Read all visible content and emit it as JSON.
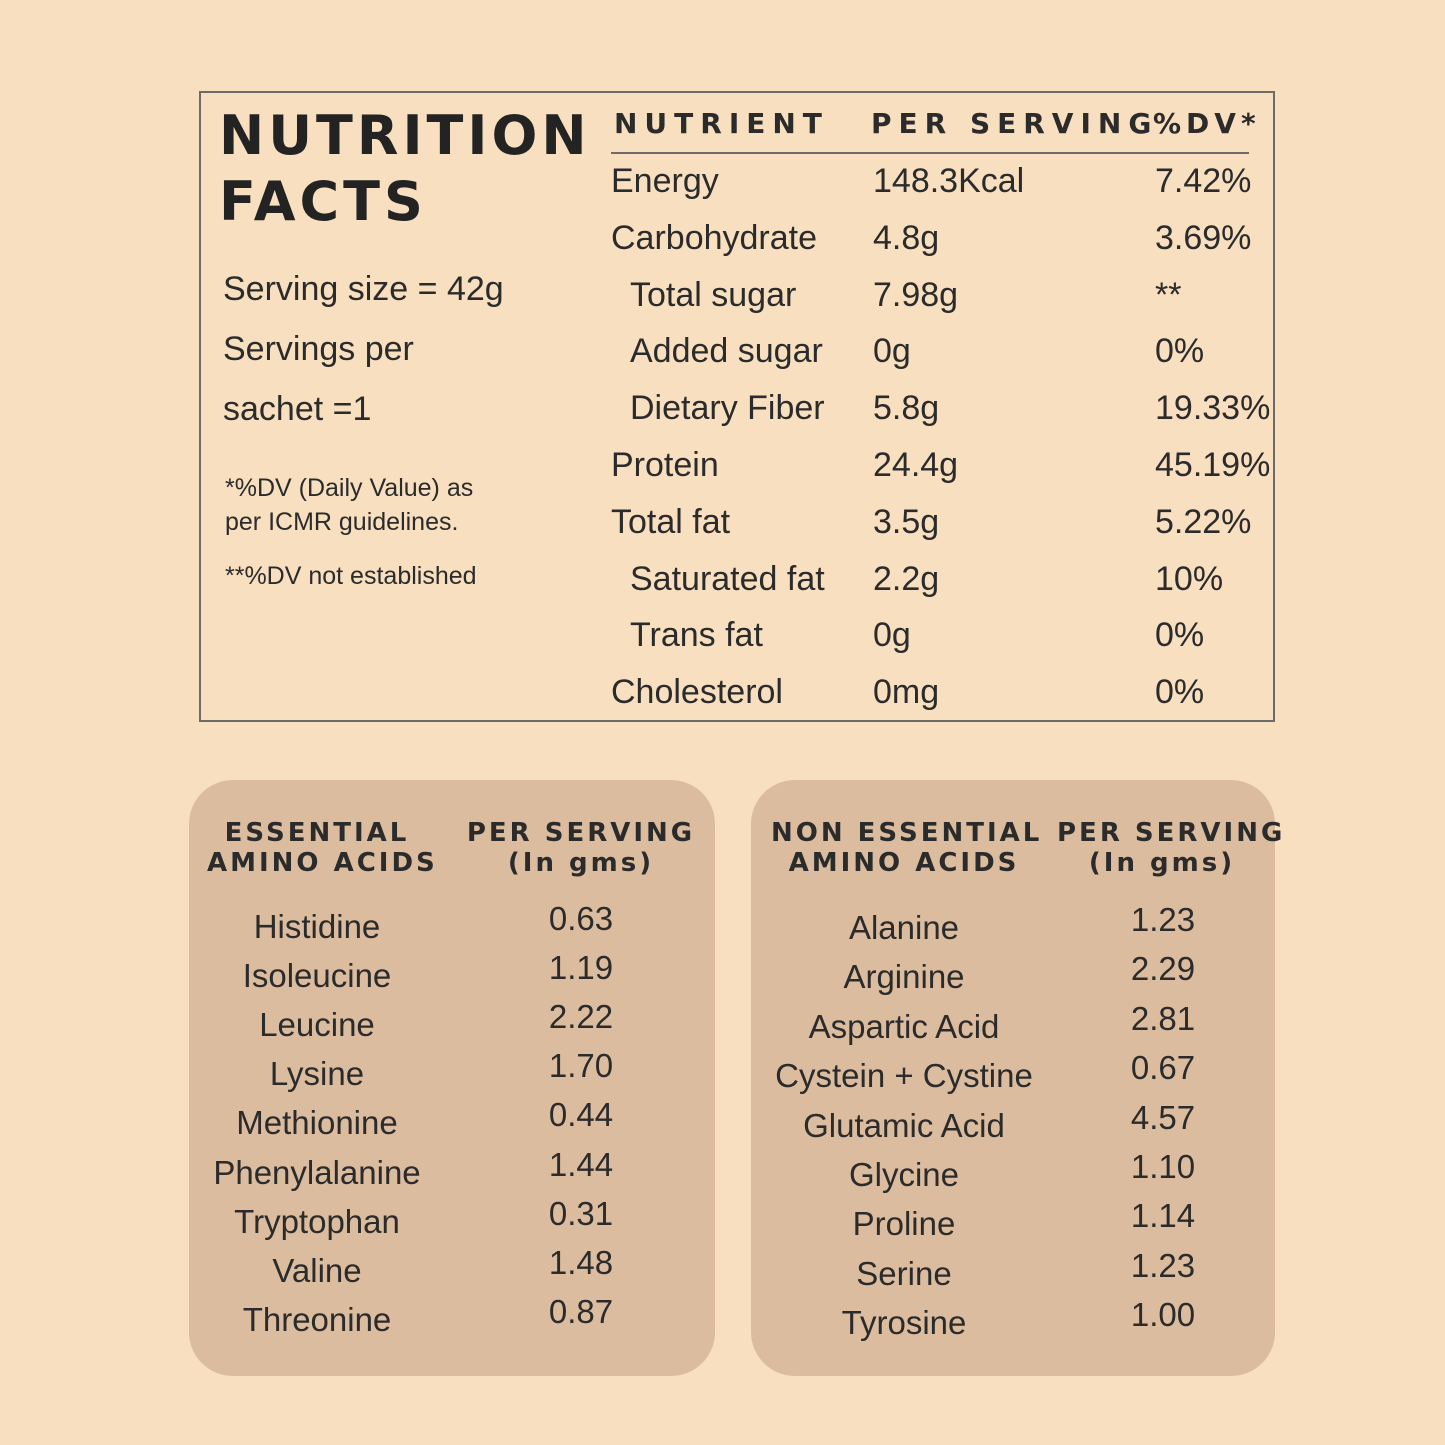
{
  "facts": {
    "title_line1": "NUTRITION",
    "title_line2": "FACTS",
    "serving_size": "Serving size = 42g",
    "servings_line1": "Servings per",
    "servings_line2": "sachet =1",
    "note_dv_line1": "*%DV (Daily Value) as",
    "note_dv_line2": "per ICMR guidelines.",
    "note_not_established": "**%DV not established"
  },
  "nutrient_table": {
    "headers": {
      "nutrient": "NUTRIENT",
      "per_serving": "PER SERVING",
      "dv": "%DV*"
    },
    "rows": [
      {
        "name": "Energy",
        "value": "148.3Kcal",
        "dv": "7.42%",
        "indent": false
      },
      {
        "name": "Carbohydrate",
        "value": "4.8g",
        "dv": "3.69%",
        "indent": false
      },
      {
        "name": "Total sugar",
        "value": "7.98g",
        "dv": "**",
        "indent": true
      },
      {
        "name": "Added sugar",
        "value": "0g",
        "dv": "0%",
        "indent": true
      },
      {
        "name": "Dietary Fiber",
        "value": "5.8g",
        "dv": "19.33%",
        "indent": true
      },
      {
        "name": "Protein",
        "value": "24.4g",
        "dv": "45.19%",
        "indent": false
      },
      {
        "name": "Total fat",
        "value": "3.5g",
        "dv": "5.22%",
        "indent": false
      },
      {
        "name": "Saturated fat",
        "value": "2.2g",
        "dv": "10%",
        "indent": true
      },
      {
        "name": "Trans fat",
        "value": "0g",
        "dv": "0%",
        "indent": true
      },
      {
        "name": "Cholesterol",
        "value": "0mg",
        "dv": "0%",
        "indent": false
      }
    ]
  },
  "essential": {
    "header_name_line1": "ESSENTIAL",
    "header_name_line2": "AMINO ACIDS",
    "header_value_line1": "PER SERVING",
    "header_value_line2": "(In gms)",
    "rows": [
      {
        "name": "Histidine",
        "value": "0.63"
      },
      {
        "name": "Isoleucine",
        "value": "1.19"
      },
      {
        "name": "Leucine",
        "value": "2.22"
      },
      {
        "name": "Lysine",
        "value": "1.70"
      },
      {
        "name": "Methionine",
        "value": "0.44"
      },
      {
        "name": "Phenylalanine",
        "value": "1.44"
      },
      {
        "name": "Tryptophan",
        "value": "0.31"
      },
      {
        "name": "Valine",
        "value": "1.48"
      },
      {
        "name": "Threonine",
        "value": "0.87"
      }
    ]
  },
  "non_essential": {
    "header_name_line1": "NON ESSENTIAL",
    "header_name_line2": "AMINO ACIDS",
    "header_value_line1": "PER SERVING",
    "header_value_line2": "(In gms)",
    "rows": [
      {
        "name": "Alanine",
        "value": "1.23"
      },
      {
        "name": "Arginine",
        "value": "2.29"
      },
      {
        "name": "Aspartic Acid",
        "value": "2.81"
      },
      {
        "name": "Cystein + Cystine",
        "value": "0.67"
      },
      {
        "name": "Glutamic Acid",
        "value": "4.57"
      },
      {
        "name": "Glycine",
        "value": "1.10"
      },
      {
        "name": "Proline",
        "value": "1.14"
      },
      {
        "name": "Serine",
        "value": "1.23"
      },
      {
        "name": "Tyrosine",
        "value": "1.00"
      }
    ]
  },
  "colors": {
    "background": "#f7dfc0",
    "panel": "#dbbc9f",
    "text": "#2b2b2b",
    "border": "#6e6a66"
  }
}
